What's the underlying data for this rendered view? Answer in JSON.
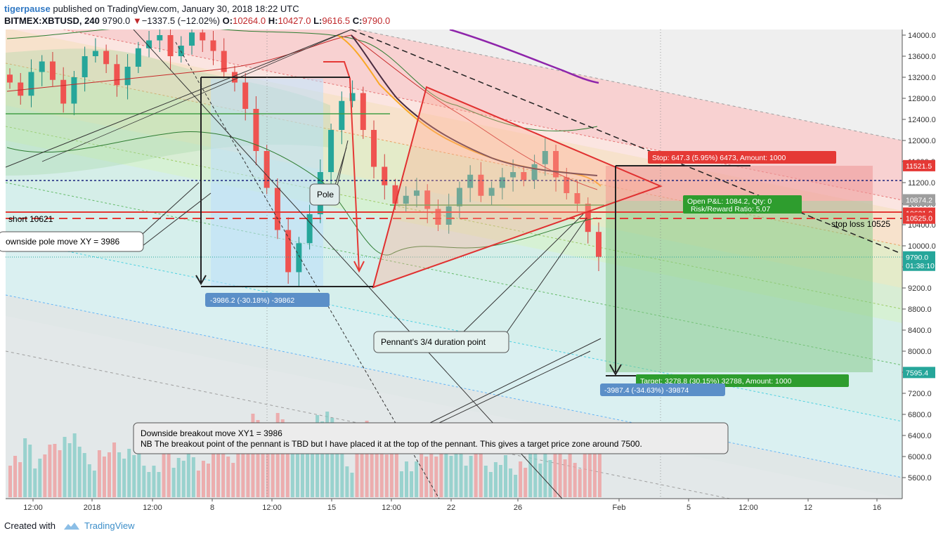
{
  "header": {
    "author": "tigerpause",
    "published": "published on TradingView.com, January 30, 2018 18:22 UTC",
    "symbol": "BITMEX:XBTUSD, 240",
    "last": "9790.0",
    "change": "−1337.5 (−12.02%)",
    "o_label": "O:",
    "o_value": "10264.0",
    "h_label": "H:",
    "h_value": "10427.0",
    "l_label": "L:",
    "l_value": "9616.5",
    "c_label": "C:",
    "c_value": "9790.0"
  },
  "footer": {
    "created_with": "Created with",
    "brand": "TradingView"
  },
  "colors": {
    "up": "#26a69a",
    "down": "#ef5350",
    "pennant": "#e03030",
    "stop_box": "#f0a0a0",
    "target_box": "#4caf50"
  },
  "chart_data": {
    "type": "candlestick",
    "y_ticks": [
      "14000.0",
      "13600.0",
      "13200.0",
      "12800.0",
      "12400.0",
      "12000.0",
      "11600.0",
      "11200.0",
      "10800.0",
      "10400.0",
      "10000.0",
      "9600.0",
      "9200.0",
      "8800.0",
      "8400.0",
      "8000.0",
      "7600.0",
      "7200.0",
      "6800.0",
      "6400.0",
      "6000.0",
      "5600.0"
    ],
    "x_ticks": [
      "12:00",
      "2018",
      "12:00",
      "8",
      "12:00",
      "15",
      "12:00",
      "22",
      "26",
      "Feb",
      "5",
      "12:00",
      "12",
      "16"
    ],
    "price_labels": [
      {
        "text": "11521.5",
        "value": 11521.5,
        "color": "#e53935"
      },
      {
        "text": "10874.2",
        "value": 10874.2,
        "color": "#9e9e9e"
      },
      {
        "text": "10621.0",
        "value": 10621.0,
        "color": "#e53935"
      },
      {
        "text": "10525.0",
        "value": 10525.0,
        "color": "#e53935"
      },
      {
        "text": "9790.0",
        "value": 9790.0,
        "color": "#26a69a"
      },
      {
        "text": "01:38:10",
        "value": 9630,
        "color": "#26a69a"
      },
      {
        "text": "7595.4",
        "value": 7595.4,
        "color": "#26a69a"
      }
    ],
    "annotations": {
      "short": "short 10621",
      "pole_move": "ownside pole move XY = 3986",
      "pole": "Pole",
      "pole_measure": "-3986.2 (-30.18%) -39862",
      "pennant_point": "Pennant's 3/4 duration point",
      "breakout_line1": "Downside breakout move XY1 = 3986",
      "breakout_line2": "NB The breakout point of the pennant is TBD but I have placed it at the top of the pennant.  This gives a target price zone around 7500.",
      "stop": "Stop: 647.3 (5.95%) 6473, Amount: 1000",
      "open_pl": "Open P&L: 1084.2, Qty: 0",
      "rr": "Risk/Reward Ratio: 5.07",
      "stop_loss": "stop loss 10525",
      "target": "Target: 3278.8 (30.15%) 32788, Amount: 1000",
      "target_measure": "-3987.4 (-34.63%) -39874"
    },
    "series": [
      {
        "name": "price",
        "values": [
          13100,
          12850,
          13300,
          13500,
          13150,
          12700,
          13200,
          13600,
          13700,
          13450,
          13050,
          13400,
          13750,
          13900,
          14000,
          13600,
          13800,
          14050,
          13900,
          13700,
          13300,
          13100,
          12600,
          11800,
          11100,
          10300,
          9500,
          10050,
          10600,
          11400,
          12200,
          12750,
          12900,
          12200,
          11500,
          11150,
          10800,
          10950,
          11050,
          10700,
          10400,
          10750,
          11100,
          11350,
          10950,
          11100,
          11300,
          11400,
          11250,
          11550,
          11800,
          11300,
          11000,
          10800,
          10264,
          9790
        ]
      }
    ]
  }
}
